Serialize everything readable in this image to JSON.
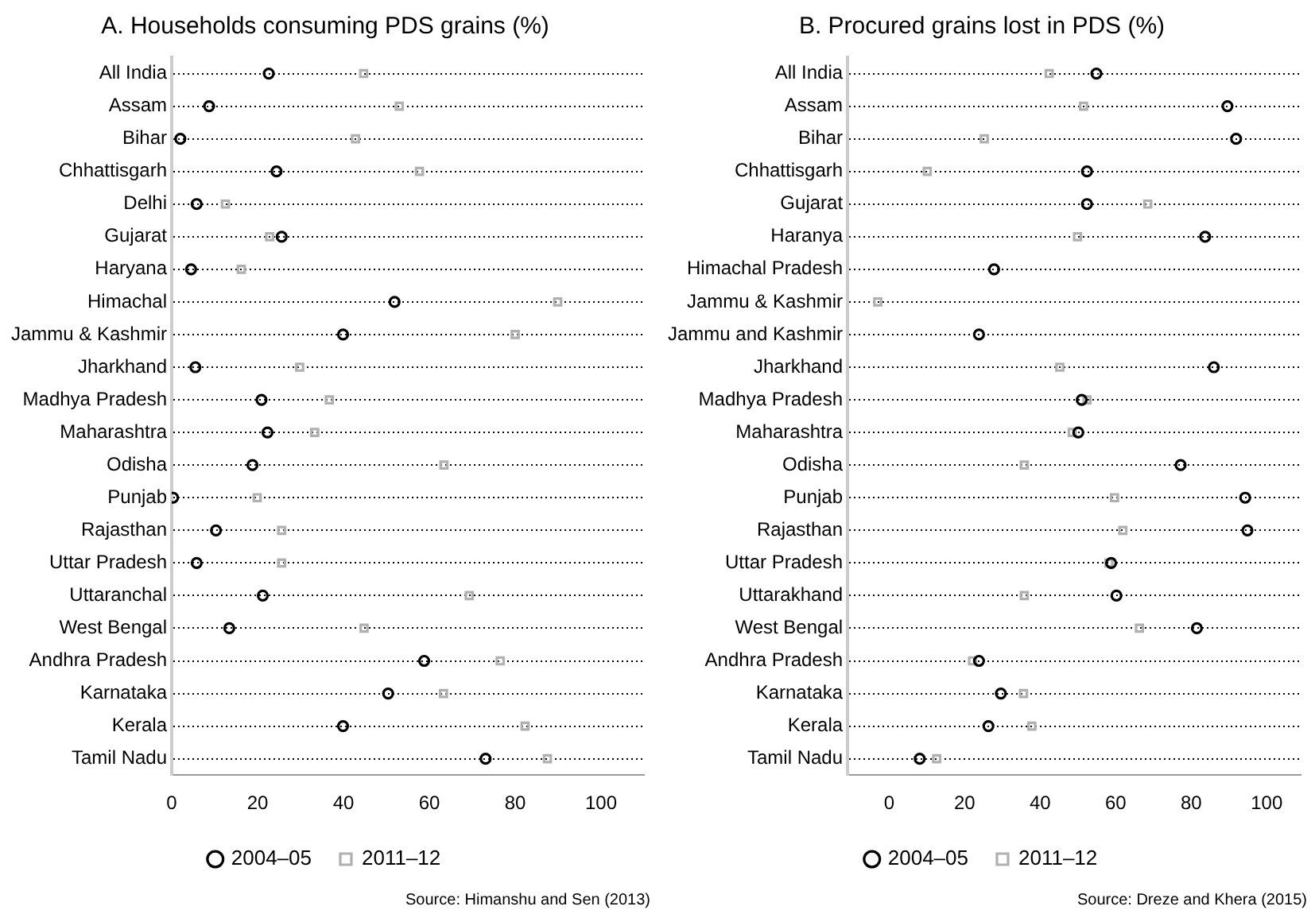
{
  "chart_data": [
    {
      "type": "scatter",
      "title": "A. Households consuming PDS grains (%)",
      "categories": [
        "All India",
        "Assam",
        "Bihar",
        "Chhattisgarh",
        "Delhi",
        "Gujarat",
        "Haryana",
        "Himachal",
        "Jammu & Kashmir",
        "Jharkhand",
        "Madhya Pradesh",
        "Maharashtra",
        "Odisha",
        "Punjab",
        "Rajasthan",
        "Uttar Pradesh",
        "Uttaranchal",
        "West Bengal",
        "Andhra Pradesh",
        "Karnataka",
        "Kerala",
        "Tamil Nadu"
      ],
      "series": [
        {
          "name": "2004–05",
          "color": "#000000",
          "marker": "circle",
          "values": [
            22.6,
            8.7,
            2,
            24.4,
            5.8,
            25.6,
            4.5,
            51.9,
            39.9,
            5.5,
            20.9,
            22.3,
            18.8,
            0.3,
            10.3,
            5.8,
            21.2,
            13.4,
            58.8,
            50.4,
            39.9,
            73.1
          ]
        },
        {
          "name": "2011–12",
          "color": "#b0b0b0",
          "marker": "square",
          "values": [
            44.7,
            53,
            42.8,
            57.7,
            12.5,
            22.8,
            16.2,
            89.9,
            80,
            29.8,
            36.7,
            33.3,
            63.4,
            19.9,
            25.6,
            25.6,
            69.3,
            44.8,
            76.5,
            63.3,
            82.3,
            87.5
          ]
        }
      ],
      "orientation": "horizontal",
      "xlim": [
        0,
        110
      ],
      "xticks": [
        0,
        20,
        40,
        60,
        80,
        100
      ],
      "grid": "y",
      "legend": "bottom",
      "annotations": [
        "Source: Himanshu and Sen (2013)"
      ]
    },
    {
      "type": "scatter",
      "title": "B. Procured grains lost in PDS (%)",
      "categories": [
        "All India",
        "Assam",
        "Bihar",
        "Chhattisgarh",
        "Gujarat",
        "Haranya",
        "Himachal Pradesh",
        "Jammu & Kashmir",
        "Jammu and Kashmir",
        "Jharkhand",
        "Madhya Pradesh",
        "Maharashtra",
        "Odisha",
        "Punjab",
        "Rajasthan",
        "Uttar Pradesh",
        "Uttarakhand",
        "West Bengal",
        "Andhra Pradesh",
        "Karnataka",
        "Kerala",
        "Tamil Nadu"
      ],
      "series": [
        {
          "name": "2004–05",
          "color": "#000000",
          "marker": "circle",
          "values": [
            54.9,
            89.6,
            91.9,
            52.4,
            52.4,
            83.7,
            27.8,
            null,
            23.8,
            86,
            51,
            50.1,
            77.2,
            94.3,
            94.9,
            58.8,
            60.2,
            81.5,
            23.8,
            29.6,
            26.3,
            8.1
          ]
        },
        {
          "name": "2011–12",
          "color": "#b0b0b0",
          "marker": "square",
          "values": [
            42.4,
            51.5,
            25.2,
            10.1,
            68.5,
            49.9,
            null,
            -3,
            null,
            45.2,
            52.4,
            48.5,
            35.8,
            59.7,
            61.9,
            58.2,
            35.8,
            66.3,
            22.1,
            35.6,
            37.8,
            12.6
          ]
        }
      ],
      "orientation": "horizontal",
      "xlim": [
        -11,
        109
      ],
      "xticks": [
        0,
        20,
        40,
        60,
        80,
        100
      ],
      "grid": "y",
      "legend": "bottom",
      "annotations": [
        "Source: Dreze and Khera (2015)"
      ]
    }
  ]
}
